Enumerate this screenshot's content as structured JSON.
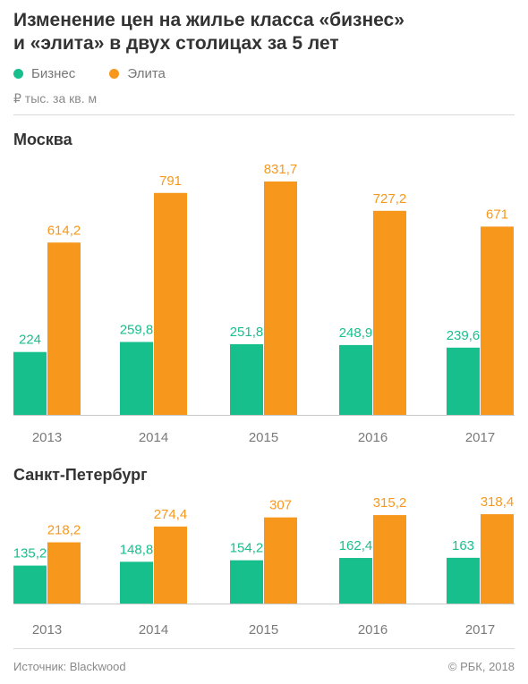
{
  "title": {
    "line1": "Изменение цен на жилье класса «бизнес»",
    "line2": "и «элита» в двух столицах за 5 лет"
  },
  "legend": [
    {
      "label": "Бизнес",
      "color": "#17bf8c"
    },
    {
      "label": "Элита",
      "color": "#f7981c"
    }
  ],
  "unit": "₽ тыс. за кв. м",
  "colors": {
    "business": "#17bf8c",
    "elite": "#f7981c",
    "axis": "#c8c8c8",
    "tick": "#7a7a7a"
  },
  "chart_data": [
    {
      "type": "bar",
      "title": "Москва",
      "categories": [
        "2013",
        "2014",
        "2015",
        "2016",
        "2017"
      ],
      "series": [
        {
          "name": "Бизнес",
          "values": [
            224,
            259.8,
            251.8,
            248.9,
            239.6
          ],
          "labels": [
            "224",
            "259,8",
            "251,8",
            "248,9",
            "239,6"
          ]
        },
        {
          "name": "Элита",
          "values": [
            614.2,
            791,
            831.7,
            727.2,
            671
          ],
          "labels": [
            "614,2",
            "791",
            "831,7",
            "727,2",
            "671"
          ]
        }
      ],
      "ylim": [
        0,
        831.7
      ]
    },
    {
      "type": "bar",
      "title": "Санкт-Петербург",
      "categories": [
        "2013",
        "2014",
        "2015",
        "2016",
        "2017"
      ],
      "series": [
        {
          "name": "Бизнес",
          "values": [
            135.2,
            148.8,
            154.2,
            162.4,
            163
          ],
          "labels": [
            "135,2",
            "148,8",
            "154,2",
            "162,4",
            "163"
          ]
        },
        {
          "name": "Элита",
          "values": [
            218.2,
            274.4,
            307,
            315.2,
            318.4
          ],
          "labels": [
            "218,2",
            "274,4",
            "307",
            "315,2",
            "318,4"
          ]
        }
      ],
      "ylim": [
        0,
        831.7
      ]
    }
  ],
  "footer": {
    "source": "Источник: Blackwood",
    "copyright": "© РБК, 2018"
  }
}
